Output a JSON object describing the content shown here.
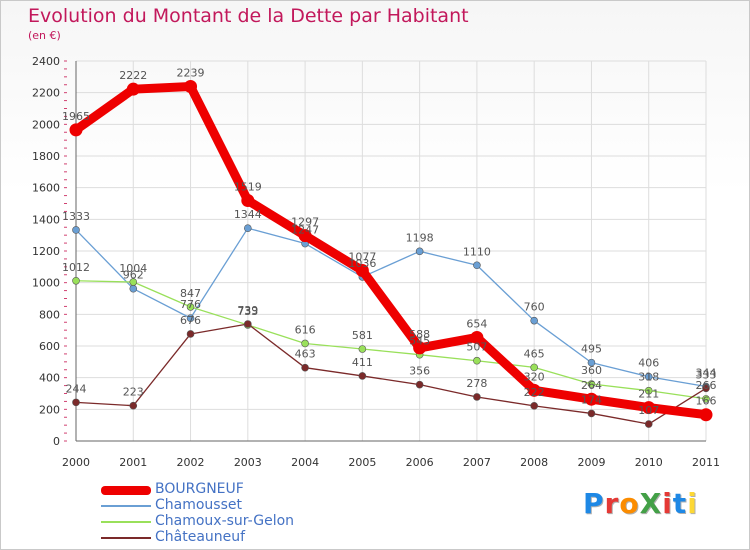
{
  "title": "Evolution du Montant de la Dette par Habitant",
  "subtitle": "(en €)",
  "brand": {
    "text": "ProXiti",
    "colors": [
      "#1e88e5",
      "#e53935",
      "#fb8c00",
      "#43a047",
      "#e53935",
      "#1e88e5",
      "#fdd835"
    ]
  },
  "chart_data": {
    "type": "line",
    "x": [
      "2000",
      "2001",
      "2002",
      "2003",
      "2004",
      "2005",
      "2006",
      "2007",
      "2008",
      "2009",
      "2010",
      "2011"
    ],
    "ylim": [
      0,
      2400
    ],
    "yticks": [
      "0",
      "200",
      "400",
      "600",
      "800",
      "1000",
      "1200",
      "1400",
      "1600",
      "1800",
      "2000",
      "2200",
      "2400"
    ],
    "grid": true,
    "legend_position": "bottom-left",
    "series": [
      {
        "name": "BOURGNEUF",
        "color": "#ee0000",
        "thick": true,
        "values": [
          1965,
          2222,
          2239,
          1519,
          1297,
          1077,
          588,
          654,
          320,
          264,
          211,
          166
        ]
      },
      {
        "name": "Chamousset",
        "color": "#6a9fd4",
        "thick": false,
        "values": [
          1333,
          962,
          776,
          1344,
          1247,
          1036,
          1198,
          1110,
          760,
          495,
          406,
          344
        ]
      },
      {
        "name": "Chamoux-sur-Gelon",
        "color": "#99e05a",
        "thick": false,
        "values": [
          1012,
          1004,
          847,
          733,
          616,
          581,
          545,
          507,
          465,
          360,
          318,
          266
        ]
      },
      {
        "name": "Châteauneuf",
        "color": "#7b2a2a",
        "thick": false,
        "values": [
          244,
          223,
          676,
          739,
          463,
          411,
          356,
          278,
          222,
          174,
          107,
          333
        ]
      }
    ]
  }
}
